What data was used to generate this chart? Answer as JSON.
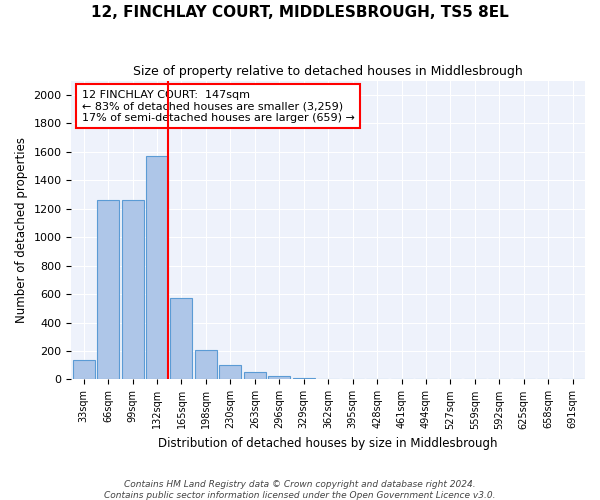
{
  "title": "12, FINCHLAY COURT, MIDDLESBROUGH, TS5 8EL",
  "subtitle": "Size of property relative to detached houses in Middlesbrough",
  "xlabel": "Distribution of detached houses by size in Middlesbrough",
  "ylabel": "Number of detached properties",
  "bin_labels": [
    "33sqm",
    "66sqm",
    "99sqm",
    "132sqm",
    "165sqm",
    "198sqm",
    "230sqm",
    "263sqm",
    "296sqm",
    "329sqm",
    "362sqm",
    "395sqm",
    "428sqm",
    "461sqm",
    "494sqm",
    "527sqm",
    "559sqm",
    "592sqm",
    "625sqm",
    "658sqm",
    "691sqm"
  ],
  "bar_heights": [
    140,
    1260,
    1260,
    1570,
    570,
    210,
    100,
    50,
    25,
    10,
    5,
    5,
    3,
    3,
    3,
    2,
    2,
    2,
    2,
    1,
    1
  ],
  "bar_color": "#aec6e8",
  "bar_edge_color": "#5b9bd5",
  "vline_x": 4,
  "vline_color": "red",
  "ylim": [
    0,
    2100
  ],
  "yticks": [
    0,
    200,
    400,
    600,
    800,
    1000,
    1200,
    1400,
    1600,
    1800,
    2000
  ],
  "annotation_text": "12 FINCHLAY COURT:  147sqm\n← 83% of detached houses are smaller (3,259)\n17% of semi-detached houses are larger (659) →",
  "bg_color": "#eef2fb",
  "grid_color": "white",
  "footer_line1": "Contains HM Land Registry data © Crown copyright and database right 2024.",
  "footer_line2": "Contains public sector information licensed under the Open Government Licence v3.0."
}
